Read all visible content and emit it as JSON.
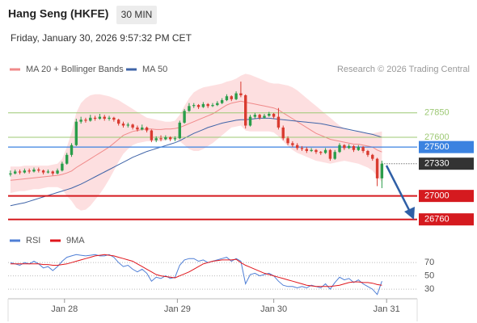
{
  "header": {
    "title": "Hang Seng (HKFE)",
    "interval": "30 MIN",
    "timestamp": "Friday, January 30, 2026 9:57:32 PM CET"
  },
  "chart_data": [
    {
      "type": "candlestick",
      "credit": "Research © 2026 Trading Central",
      "up_color": "#2a9d4a",
      "down_color": "#d93b30",
      "xlim": [
        -0.5,
        86.5
      ],
      "ylim": [
        26650,
        28220
      ],
      "candles": [
        [
          27220,
          27260,
          27200,
          27230
        ],
        [
          27230,
          27270,
          27220,
          27250
        ],
        [
          27250,
          27270,
          27220,
          27240
        ],
        [
          27240,
          27280,
          27230,
          27260
        ],
        [
          27260,
          27280,
          27230,
          27250
        ],
        [
          27250,
          27290,
          27240,
          27270
        ],
        [
          27270,
          27290,
          27240,
          27260
        ],
        [
          27260,
          27270,
          27220,
          27240
        ],
        [
          27240,
          27270,
          27230,
          27250
        ],
        [
          27250,
          27260,
          27210,
          27230
        ],
        [
          27230,
          27280,
          27220,
          27260
        ],
        [
          27260,
          27350,
          27250,
          27330
        ],
        [
          27330,
          27440,
          27320,
          27420
        ],
        [
          27420,
          27540,
          27400,
          27520
        ],
        [
          27520,
          27790,
          27510,
          27760
        ],
        [
          27760,
          27810,
          27740,
          27780
        ],
        [
          27780,
          27800,
          27750,
          27770
        ],
        [
          27770,
          27830,
          27760,
          27800
        ],
        [
          27800,
          27820,
          27770,
          27790
        ],
        [
          27790,
          27840,
          27780,
          27810
        ],
        [
          27810,
          27830,
          27770,
          27790
        ],
        [
          27790,
          27820,
          27770,
          27800
        ],
        [
          27800,
          27810,
          27760,
          27780
        ],
        [
          27780,
          27790,
          27720,
          27740
        ],
        [
          27740,
          27760,
          27700,
          27720
        ],
        [
          27720,
          27750,
          27700,
          27730
        ],
        [
          27730,
          27740,
          27680,
          27700
        ],
        [
          27700,
          27720,
          27660,
          27680
        ],
        [
          27680,
          27730,
          27670,
          27700
        ],
        [
          27700,
          27710,
          27650,
          27670
        ],
        [
          27670,
          27680,
          27550,
          27570
        ],
        [
          27570,
          27610,
          27550,
          27590
        ],
        [
          27590,
          27620,
          27560,
          27580
        ],
        [
          27580,
          27620,
          27570,
          27600
        ],
        [
          27600,
          27610,
          27560,
          27580
        ],
        [
          27580,
          27610,
          27560,
          27590
        ],
        [
          27590,
          27770,
          27580,
          27750
        ],
        [
          27750,
          27890,
          27740,
          27870
        ],
        [
          27870,
          27950,
          27860,
          27920
        ],
        [
          27920,
          27950,
          27900,
          27930
        ],
        [
          27930,
          27940,
          27890,
          27910
        ],
        [
          27910,
          27960,
          27900,
          27940
        ],
        [
          27940,
          27950,
          27900,
          27920
        ],
        [
          27920,
          27950,
          27910,
          27930
        ],
        [
          27930,
          27970,
          27920,
          27950
        ],
        [
          27950,
          28000,
          27940,
          27980
        ],
        [
          27980,
          28040,
          27970,
          28020
        ],
        [
          28020,
          28030,
          27970,
          27990
        ],
        [
          27990,
          28070,
          27980,
          28050
        ],
        [
          28050,
          28170,
          28010,
          28030
        ],
        [
          28030,
          28040,
          27690,
          27720
        ],
        [
          27720,
          27830,
          27710,
          27810
        ],
        [
          27810,
          27850,
          27790,
          27830
        ],
        [
          27830,
          27840,
          27780,
          27800
        ],
        [
          27800,
          27840,
          27790,
          27820
        ],
        [
          27820,
          27860,
          27810,
          27840
        ],
        [
          27840,
          27850,
          27790,
          27810
        ],
        [
          27810,
          27900,
          27680,
          27700
        ],
        [
          27700,
          27720,
          27570,
          27590
        ],
        [
          27590,
          27610,
          27520,
          27540
        ],
        [
          27540,
          27560,
          27500,
          27520
        ],
        [
          27520,
          27540,
          27470,
          27490
        ],
        [
          27490,
          27510,
          27460,
          27480
        ],
        [
          27480,
          27500,
          27440,
          27460
        ],
        [
          27460,
          27490,
          27450,
          27470
        ],
        [
          27470,
          27480,
          27430,
          27450
        ],
        [
          27450,
          27460,
          27420,
          27440
        ],
        [
          27440,
          27490,
          27430,
          27470
        ],
        [
          27470,
          27480,
          27360,
          27380
        ],
        [
          27380,
          27470,
          27370,
          27450
        ],
        [
          27450,
          27540,
          27440,
          27520
        ],
        [
          27520,
          27530,
          27470,
          27490
        ],
        [
          27490,
          27530,
          27480,
          27510
        ],
        [
          27510,
          27520,
          27450,
          27470
        ],
        [
          27470,
          27520,
          27460,
          27500
        ],
        [
          27500,
          27510,
          27440,
          27460
        ],
        [
          27460,
          27470,
          27400,
          27420
        ],
        [
          27420,
          27430,
          27360,
          27380
        ],
        [
          27380,
          27390,
          27100,
          27180
        ],
        [
          27180,
          27360,
          27080,
          27330
        ]
      ],
      "series": [
        {
          "name": "MA 20 + Bollinger Bands",
          "color": "#f08a8a",
          "band_color": "#fdd9da",
          "values": [
            27160,
            27165,
            27170,
            27175,
            27180,
            27185,
            27190,
            27195,
            27200,
            27205,
            27210,
            27220,
            27235,
            27255,
            27290,
            27320,
            27350,
            27380,
            27410,
            27440,
            27470,
            27500,
            27540,
            27580,
            27620,
            27640,
            27660,
            27670,
            27680,
            27685,
            27685,
            27680,
            27680,
            27685,
            27685,
            27690,
            27700,
            27720,
            27740,
            27760,
            27780,
            27800,
            27820,
            27840,
            27870,
            27900,
            27930,
            27950,
            27960,
            27970,
            27960,
            27950,
            27940,
            27930,
            27920,
            27910,
            27900,
            27880,
            27850,
            27820,
            27790,
            27760,
            27730,
            27700,
            27670,
            27640,
            27620,
            27600,
            27580,
            27570,
            27560,
            27550,
            27540,
            27530,
            27530,
            27520,
            27510,
            27500,
            27470,
            27450
          ],
          "upper": [
            27300,
            27300,
            27300,
            27310,
            27310,
            27310,
            27310,
            27310,
            27310,
            27320,
            27330,
            27380,
            27500,
            27650,
            27850,
            27950,
            28000,
            28030,
            28040,
            28040,
            28030,
            28020,
            28000,
            27980,
            27950,
            27920,
            27890,
            27860,
            27830,
            27800,
            27790,
            27780,
            27770,
            27760,
            27760,
            27770,
            27830,
            27920,
            28000,
            28060,
            28090,
            28110,
            28120,
            28130,
            28140,
            28150,
            28170,
            28180,
            28200,
            28230,
            28250,
            28240,
            28220,
            28200,
            28180,
            28160,
            28150,
            28150,
            28140,
            28130,
            28110,
            28080,
            28040,
            28000,
            27960,
            27920,
            27880,
            27840,
            27800,
            27760,
            27720,
            27690,
            27670,
            27660,
            27660,
            27650,
            27640,
            27640,
            27650,
            27660
          ],
          "lower": [
            27030,
            27040,
            27050,
            27050,
            27060,
            27070,
            27070,
            27080,
            27090,
            27090,
            27090,
            27070,
            27000,
            26950,
            26880,
            26850,
            26860,
            26900,
            26960,
            27020,
            27090,
            27170,
            27260,
            27350,
            27430,
            27480,
            27520,
            27540,
            27550,
            27560,
            27560,
            27560,
            27560,
            27570,
            27580,
            27580,
            27560,
            27520,
            27480,
            27460,
            27460,
            27480,
            27510,
            27540,
            27580,
            27620,
            27660,
            27700,
            27710,
            27720,
            27670,
            27660,
            27660,
            27660,
            27660,
            27660,
            27650,
            27610,
            27560,
            27510,
            27470,
            27440,
            27420,
            27400,
            27380,
            27360,
            27350,
            27340,
            27330,
            27340,
            27350,
            27360,
            27350,
            27340,
            27330,
            27310,
            27290,
            27260,
            27200,
            27140
          ]
        },
        {
          "name": "MA 50",
          "color": "#3f64a8",
          "values": [
            26900,
            26910,
            26920,
            26930,
            26945,
            26960,
            26975,
            26990,
            27005,
            27020,
            27035,
            27050,
            27065,
            27080,
            27100,
            27120,
            27145,
            27170,
            27195,
            27220,
            27245,
            27270,
            27295,
            27320,
            27345,
            27370,
            27395,
            27415,
            27435,
            27455,
            27470,
            27485,
            27500,
            27515,
            27530,
            27545,
            27565,
            27590,
            27615,
            27640,
            27660,
            27680,
            27700,
            27715,
            27730,
            27745,
            27755,
            27765,
            27775,
            27780,
            27780,
            27785,
            27790,
            27795,
            27795,
            27795,
            27790,
            27785,
            27780,
            27775,
            27770,
            27765,
            27760,
            27755,
            27750,
            27745,
            27740,
            27730,
            27720,
            27710,
            27700,
            27690,
            27680,
            27670,
            27660,
            27650,
            27640,
            27630,
            27615,
            27600
          ]
        }
      ],
      "levels": [
        {
          "value": 27850,
          "color": "#9cc873",
          "box": false,
          "line_width": 1
        },
        {
          "value": 27600,
          "color": "#9cc873",
          "box": false,
          "line_width": 1
        },
        {
          "value": 27500,
          "color": "#3b82e0",
          "box": true,
          "line_width": 1.3
        },
        {
          "value": 27330,
          "color": "#333333",
          "box": true,
          "line_width": 1,
          "dotted": true
        },
        {
          "value": 27000,
          "color": "#d51a1f",
          "box": true,
          "line_width": 2
        },
        {
          "value": 26760,
          "color": "#d51a1f",
          "box": true,
          "line_width": 2
        }
      ]
    },
    {
      "type": "line",
      "xlim": [
        -0.5,
        86.5
      ],
      "ylim": [
        18,
        86
      ],
      "yticks": [
        70,
        50,
        30
      ],
      "xticks": [
        {
          "value": 11.5,
          "label": "Jan 28"
        },
        {
          "value": 35.5,
          "label": "Jan 29"
        },
        {
          "value": 56,
          "label": "Jan 30"
        },
        {
          "value": 80,
          "label": "Jan 31"
        }
      ],
      "series": [
        {
          "name": "RSI",
          "color": "#4f7fd6",
          "values": [
            70,
            68,
            66,
            70,
            68,
            72,
            68,
            62,
            64,
            58,
            64,
            72,
            78,
            80,
            82,
            81,
            80,
            81,
            82,
            80,
            80,
            82,
            78,
            70,
            64,
            66,
            60,
            56,
            60,
            54,
            42,
            48,
            46,
            50,
            46,
            48,
            66,
            74,
            76,
            76,
            72,
            74,
            70,
            72,
            74,
            76,
            78,
            72,
            76,
            72,
            38,
            52,
            54,
            50,
            52,
            54,
            50,
            42,
            36,
            34,
            34,
            32,
            34,
            32,
            36,
            34,
            32,
            38,
            30,
            40,
            48,
            44,
            46,
            40,
            44,
            38,
            34,
            30,
            22,
            42
          ]
        },
        {
          "name": "9MA",
          "color": "#e0161c",
          "values": [
            68,
            68,
            68,
            68,
            68,
            68,
            68,
            67,
            67,
            66,
            66,
            67,
            68,
            70,
            72,
            74,
            76,
            78,
            80,
            81,
            82,
            81,
            80,
            78,
            76,
            74,
            72,
            68,
            64,
            60,
            56,
            52,
            50,
            49,
            48,
            47,
            50,
            53,
            56,
            60,
            64,
            68,
            70,
            72,
            73,
            74,
            74,
            74,
            75,
            70,
            66,
            63,
            60,
            57,
            54,
            52,
            50,
            48,
            46,
            44,
            42,
            40,
            38,
            36,
            35,
            34,
            34,
            34,
            34,
            35,
            36,
            38,
            40,
            41,
            41,
            40,
            40,
            39,
            37,
            36
          ]
        }
      ]
    }
  ]
}
